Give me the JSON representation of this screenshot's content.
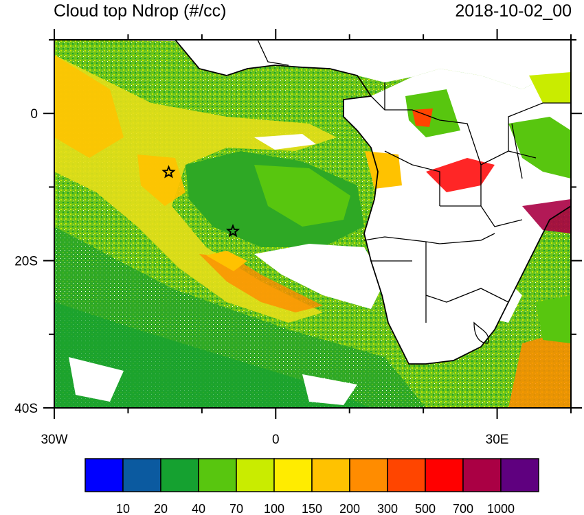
{
  "title": "Cloud top Ndrop (#/cc)",
  "timestamp": "2018-10-02_00",
  "axes": {
    "x_ticks": [
      {
        "label": "30W",
        "lon": -30
      },
      {
        "label": "0",
        "lon": 0
      },
      {
        "label": "30E",
        "lon": 30
      }
    ],
    "y_ticks": [
      {
        "label": "0",
        "lat": 0
      },
      {
        "label": "20S",
        "lat": -20
      },
      {
        "label": "40S",
        "lat": -40
      }
    ],
    "lon_range": [
      -30,
      40
    ],
    "lat_range": [
      -40,
      10
    ]
  },
  "markers": [
    {
      "name": "star-marker",
      "lon": -14.5,
      "lat": -8
    },
    {
      "name": "star-marker",
      "lon": -5.8,
      "lat": -16
    }
  ],
  "colorbar": {
    "colors": [
      "#0000ff",
      "#0b5aa0",
      "#15a130",
      "#58c60f",
      "#c9ec00",
      "#ffec00",
      "#ffc200",
      "#ff8c00",
      "#ff4500",
      "#ff0000",
      "#aa0044",
      "#5f007f"
    ],
    "labels": [
      "10",
      "20",
      "40",
      "70",
      "100",
      "150",
      "200",
      "300",
      "500",
      "700",
      "1000"
    ]
  }
}
